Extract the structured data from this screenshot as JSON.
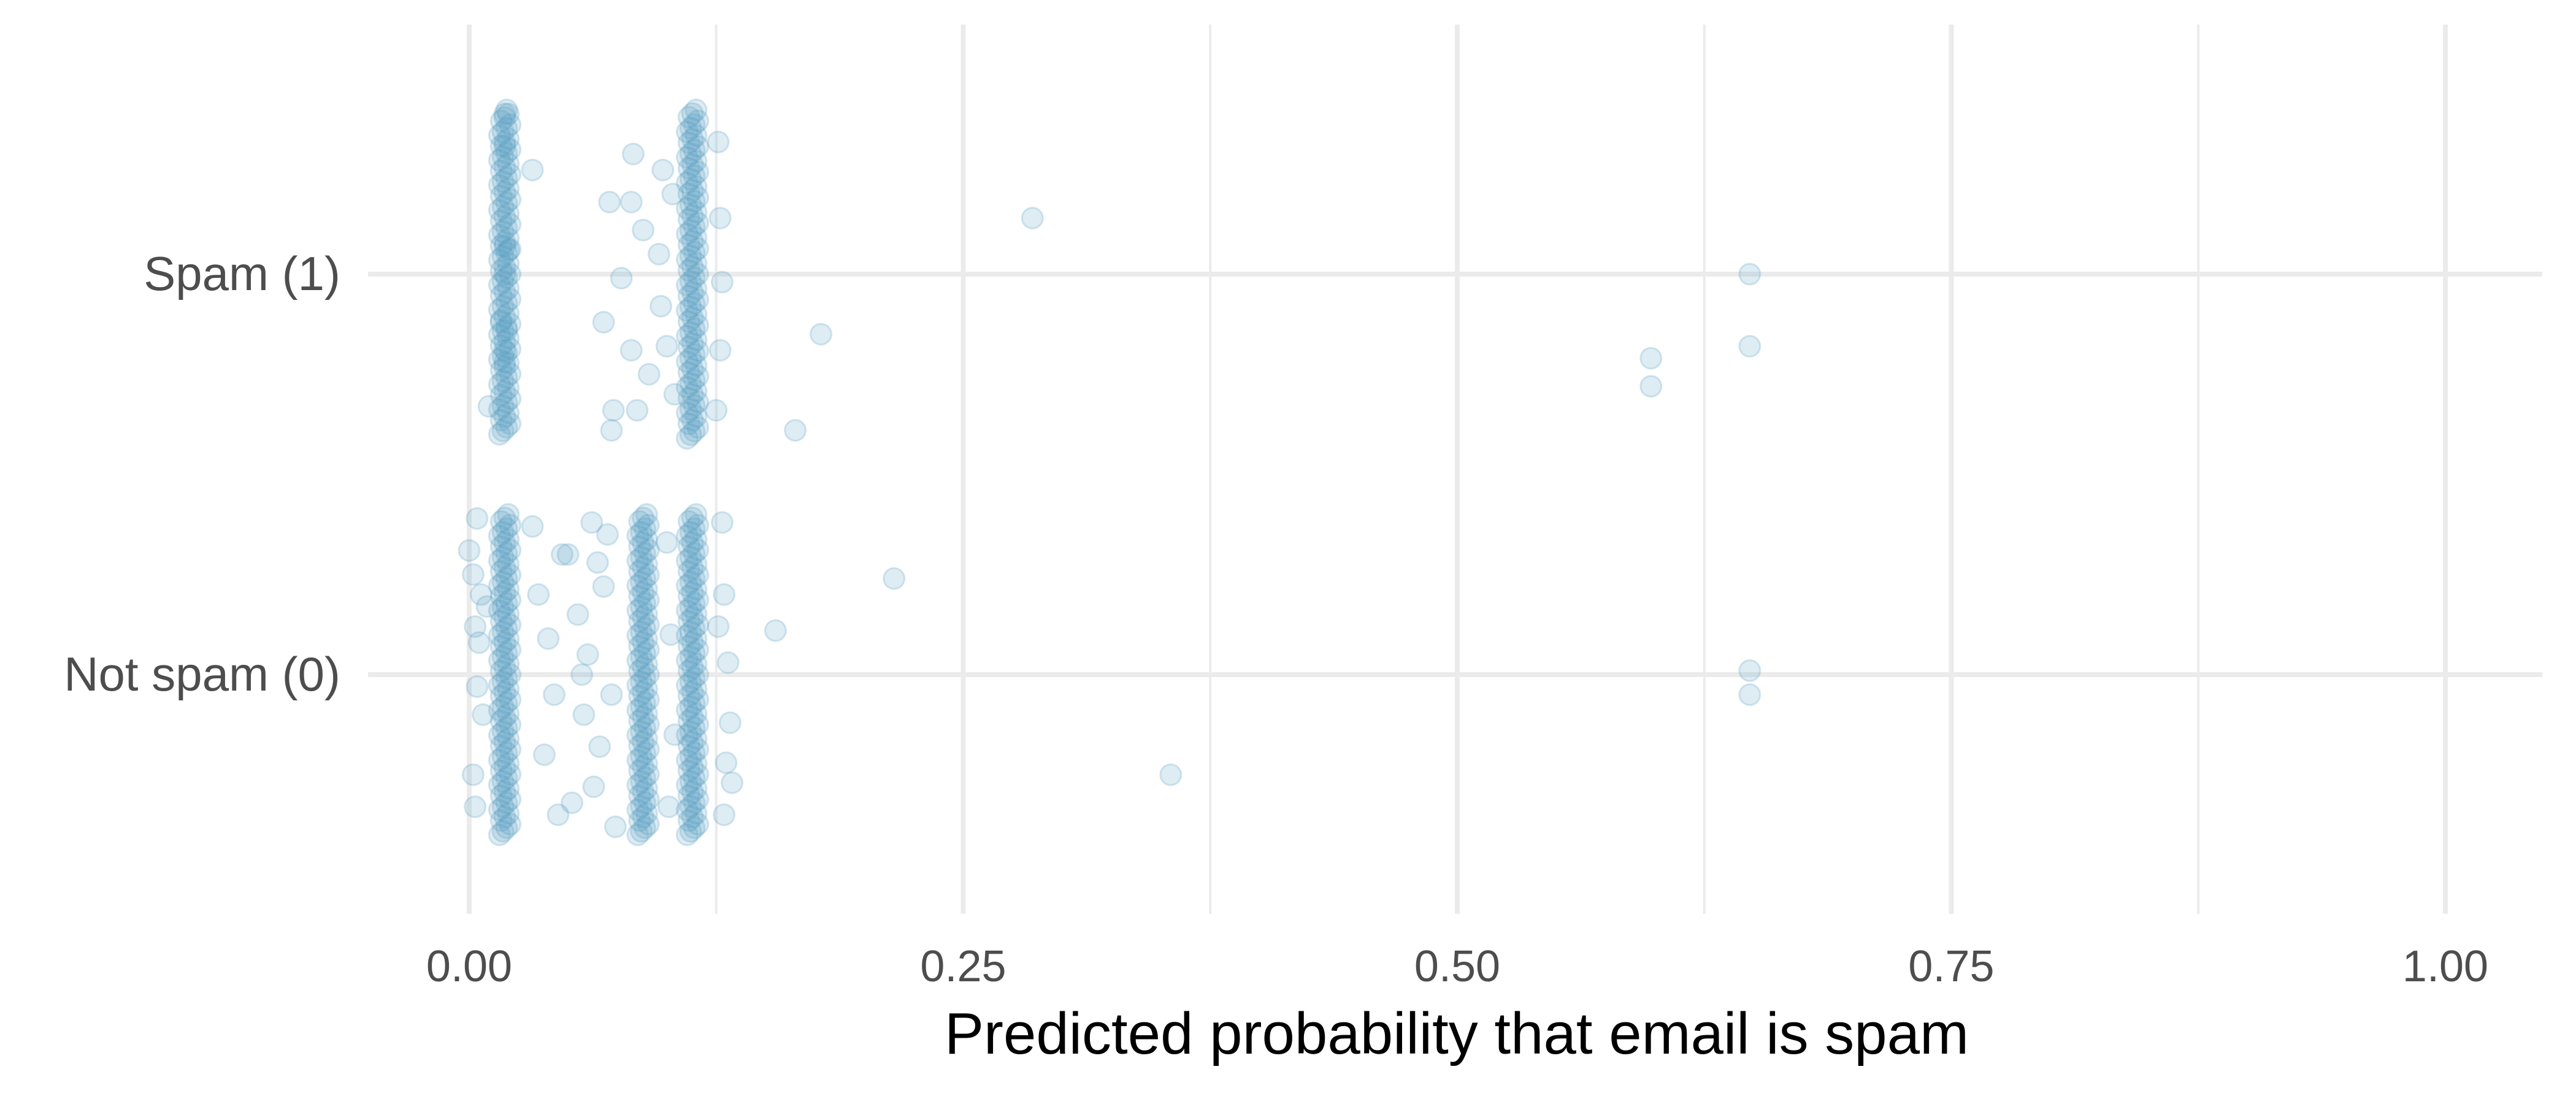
{
  "chart_data": {
    "type": "scatter",
    "title": "",
    "xlabel": "Predicted probability that email is spam",
    "ylabel": "",
    "xlim": [
      -0.05,
      1.05
    ],
    "x_ticks": [
      0,
      0.25,
      0.5,
      0.75,
      1
    ],
    "x_tick_labels": [
      "0.00",
      "0.25",
      "0.50",
      "0.75",
      "1.00"
    ],
    "y_categories": [
      "Not spam (0)",
      "Spam (1)"
    ],
    "y_values": [
      0,
      1
    ],
    "grid": true,
    "legend": "none",
    "jitter": "vertical",
    "point_color": "#5b9fc2",
    "point_opacity": 0.2,
    "points": [
      {
        "x": 0.018,
        "y": 1.4
      },
      {
        "x": 0.019,
        "y": 1.41
      },
      {
        "x": 0.018,
        "y": 1.32
      },
      {
        "x": 0.032,
        "y": 1.26
      },
      {
        "x": 0.018,
        "y": 1.07
      },
      {
        "x": 0.02,
        "y": 1.06
      },
      {
        "x": 0.018,
        "y": 1.0
      },
      {
        "x": 0.016,
        "y": 0.88
      },
      {
        "x": 0.019,
        "y": 0.86
      },
      {
        "x": 0.018,
        "y": 0.81
      },
      {
        "x": 0.018,
        "y": 0.78
      },
      {
        "x": 0.01,
        "y": 0.67
      },
      {
        "x": 0.083,
        "y": 1.3
      },
      {
        "x": 0.082,
        "y": 1.18
      },
      {
        "x": 0.071,
        "y": 1.18
      },
      {
        "x": 0.088,
        "y": 1.11
      },
      {
        "x": 0.077,
        "y": 0.99
      },
      {
        "x": 0.068,
        "y": 0.88
      },
      {
        "x": 0.082,
        "y": 0.81
      },
      {
        "x": 0.073,
        "y": 0.66
      },
      {
        "x": 0.072,
        "y": 0.61
      },
      {
        "x": 0.085,
        "y": 0.66
      },
      {
        "x": 0.091,
        "y": 0.75
      },
      {
        "x": 0.098,
        "y": 1.26
      },
      {
        "x": 0.096,
        "y": 1.05
      },
      {
        "x": 0.097,
        "y": 0.92
      },
      {
        "x": 0.1,
        "y": 0.82
      },
      {
        "x": 0.103,
        "y": 1.2
      },
      {
        "x": 0.104,
        "y": 0.7
      },
      {
        "x": 0.126,
        "y": 1.33
      },
      {
        "x": 0.127,
        "y": 1.14
      },
      {
        "x": 0.128,
        "y": 0.98
      },
      {
        "x": 0.127,
        "y": 0.81
      },
      {
        "x": 0.125,
        "y": 0.66
      },
      {
        "x": 0.285,
        "y": 1.14
      },
      {
        "x": 0.178,
        "y": 0.85
      },
      {
        "x": 0.165,
        "y": 0.61
      },
      {
        "x": 0.598,
        "y": 0.79
      },
      {
        "x": 0.598,
        "y": 0.72
      },
      {
        "x": 0.648,
        "y": 1.0
      },
      {
        "x": 0.648,
        "y": 0.82
      },
      {
        "x": 0.0,
        "y": 0.31
      },
      {
        "x": 0.002,
        "y": 0.25
      },
      {
        "x": 0.004,
        "y": 0.39
      },
      {
        "x": 0.006,
        "y": 0.2
      },
      {
        "x": 0.003,
        "y": 0.12
      },
      {
        "x": 0.005,
        "y": 0.08
      },
      {
        "x": 0.004,
        "y": -0.03
      },
      {
        "x": 0.007,
        "y": -0.1
      },
      {
        "x": 0.002,
        "y": -0.25
      },
      {
        "x": 0.003,
        "y": -0.33
      },
      {
        "x": 0.009,
        "y": 0.17
      },
      {
        "x": 0.032,
        "y": 0.37
      },
      {
        "x": 0.035,
        "y": 0.2
      },
      {
        "x": 0.04,
        "y": 0.09
      },
      {
        "x": 0.043,
        "y": -0.05
      },
      {
        "x": 0.038,
        "y": -0.2
      },
      {
        "x": 0.045,
        "y": -0.35
      },
      {
        "x": 0.05,
        "y": 0.3
      },
      {
        "x": 0.055,
        "y": 0.15
      },
      {
        "x": 0.058,
        "y": -0.1
      },
      {
        "x": 0.062,
        "y": 0.38
      },
      {
        "x": 0.06,
        "y": 0.05
      },
      {
        "x": 0.063,
        "y": -0.28
      },
      {
        "x": 0.068,
        "y": 0.22
      },
      {
        "x": 0.066,
        "y": -0.18
      },
      {
        "x": 0.07,
        "y": 0.35
      },
      {
        "x": 0.072,
        "y": -0.05
      },
      {
        "x": 0.074,
        "y": -0.38
      },
      {
        "x": 0.047,
        "y": 0.3
      },
      {
        "x": 0.052,
        "y": -0.32
      },
      {
        "x": 0.057,
        "y": 0.0
      },
      {
        "x": 0.065,
        "y": 0.28
      },
      {
        "x": 0.1,
        "y": 0.33
      },
      {
        "x": 0.102,
        "y": 0.1
      },
      {
        "x": 0.104,
        "y": -0.15
      },
      {
        "x": 0.101,
        "y": -0.33
      },
      {
        "x": 0.128,
        "y": 0.38
      },
      {
        "x": 0.129,
        "y": 0.2
      },
      {
        "x": 0.131,
        "y": 0.03
      },
      {
        "x": 0.132,
        "y": -0.12
      },
      {
        "x": 0.13,
        "y": -0.22
      },
      {
        "x": 0.129,
        "y": -0.35
      },
      {
        "x": 0.133,
        "y": -0.27
      },
      {
        "x": 0.126,
        "y": 0.12
      },
      {
        "x": 0.215,
        "y": 0.24
      },
      {
        "x": 0.155,
        "y": 0.11
      },
      {
        "x": 0.355,
        "y": -0.25
      },
      {
        "x": 0.648,
        "y": 0.01
      },
      {
        "x": 0.648,
        "y": -0.05
      }
    ],
    "dense_bands": [
      {
        "x": 0.018,
        "y_from": 0.6,
        "y_to": 1.4
      },
      {
        "x": 0.113,
        "y_from": 0.59,
        "y_to": 1.41
      },
      {
        "x": 0.018,
        "y_from": -0.4,
        "y_to": 0.4
      },
      {
        "x": 0.088,
        "y_from": -0.4,
        "y_to": 0.4
      },
      {
        "x": 0.113,
        "y_from": -0.4,
        "y_to": 0.4
      }
    ]
  }
}
